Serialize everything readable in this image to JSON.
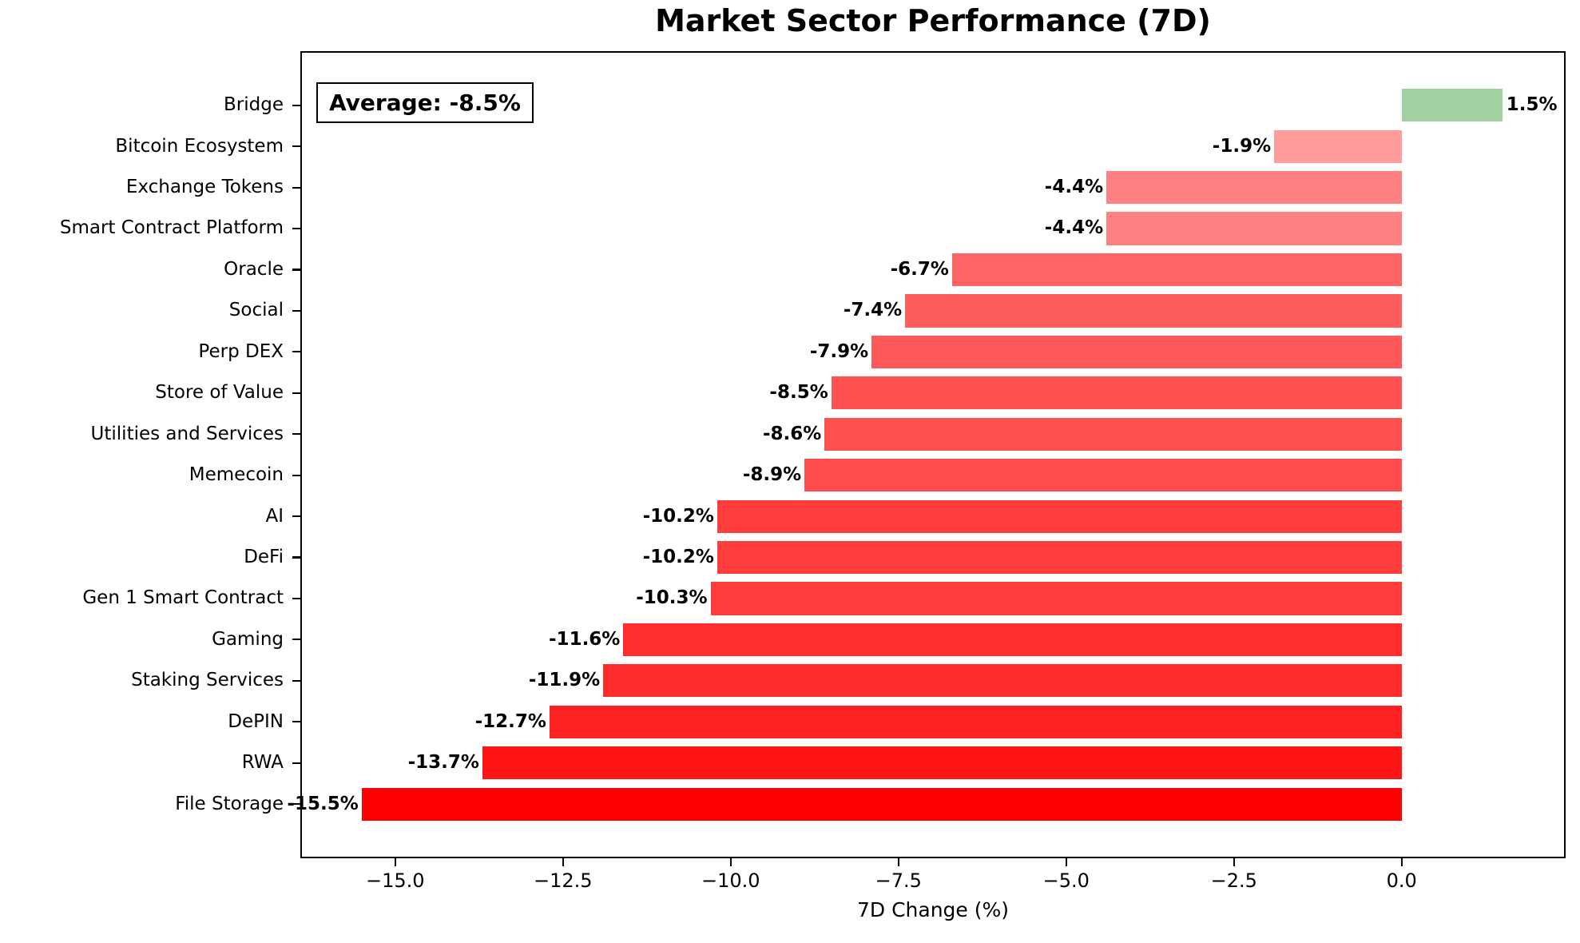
{
  "title": "Market Sector Performance (7D)",
  "annotation": {
    "average_label": "Average: -8.5%",
    "average_value": -8.5
  },
  "chart_data": {
    "type": "bar",
    "orientation": "horizontal",
    "title": "Market Sector Performance (7D)",
    "xlabel": "7D Change (%)",
    "ylabel": "",
    "categories": [
      "Bridge",
      "Bitcoin Ecosystem",
      "Exchange Tokens",
      "Smart Contract Platform",
      "Oracle",
      "Social",
      "Perp DEX",
      "Store of Value",
      "Utilities and Services",
      "Memecoin",
      "AI",
      "DeFi",
      "Gen 1 Smart Contract",
      "Gaming",
      "Staking Services",
      "DePIN",
      "RWA",
      "File Storage"
    ],
    "values": [
      1.5,
      -1.9,
      -4.4,
      -4.4,
      -6.7,
      -7.4,
      -7.9,
      -8.5,
      -8.6,
      -8.9,
      -10.2,
      -10.2,
      -10.3,
      -11.6,
      -11.9,
      -12.7,
      -13.7,
      -15.5
    ],
    "value_labels": [
      "1.5%",
      "-1.9%",
      "-4.4%",
      "-4.4%",
      "-6.7%",
      "-7.4%",
      "-7.9%",
      "-8.5%",
      "-8.6%",
      "-8.9%",
      "-10.2%",
      "-10.2%",
      "-10.3%",
      "-11.6%",
      "-11.9%",
      "-12.7%",
      "-13.7%",
      "-15.5%"
    ],
    "bar_colors": [
      "#a1d0a1",
      "#ff9d9d",
      "#ff8080",
      "#ff8080",
      "#ff6565",
      "#ff5d5d",
      "#ff5858",
      "#ff5151",
      "#ff5050",
      "#ff4c4c",
      "#ff3d3d",
      "#ff3d3d",
      "#ff3c3c",
      "#ff2d2d",
      "#ff2a2a",
      "#ff2020",
      "#ff1515",
      "#ff0000"
    ],
    "positive_color": "#a1d0a1",
    "negative_base_color": "#ff0000",
    "xlim": [
      -16.39,
      2.42
    ],
    "xticks": [
      -15.0,
      -12.5,
      -10.0,
      -7.5,
      -5.0,
      -2.5,
      0.0
    ],
    "xtick_labels": [
      "−15.0",
      "−12.5",
      "−10.0",
      "−7.5",
      "−5.0",
      "−2.5",
      "0.0"
    ],
    "grid": false,
    "legend": "none",
    "average": -8.5
  }
}
